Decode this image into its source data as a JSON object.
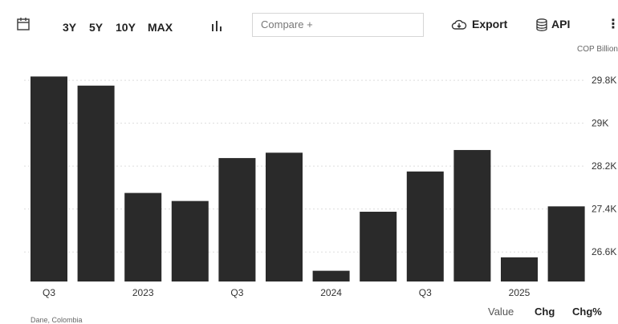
{
  "toolbar": {
    "ranges": [
      "3Y",
      "5Y",
      "10Y",
      "MAX"
    ],
    "compare_placeholder": "Compare +",
    "export_label": "Export",
    "api_label": "API",
    "more_label": "⋮"
  },
  "unit_label": "COP Billion",
  "footer": {
    "source": "Dane, Colombia",
    "tabs": [
      "Value",
      "Chg",
      "Chg%"
    ]
  },
  "colors": {
    "bar": "#2a2a2a",
    "grid": "#dddddd"
  },
  "chart_data": {
    "type": "bar",
    "values": [
      29870,
      29700,
      27700,
      27550,
      28350,
      28450,
      26250,
      27350,
      28100,
      28500,
      26500,
      27450
    ],
    "x_tick_labels": [
      "Q3",
      "2023",
      "Q3",
      "2024",
      "Q3",
      "2025"
    ],
    "x_tick_bar_index": [
      0,
      2,
      4,
      6,
      8,
      10
    ],
    "y_ticks": [
      26600,
      27400,
      28200,
      29000,
      29800
    ],
    "y_tick_labels": [
      "26.6K",
      "27.4K",
      "28.2K",
      "29K",
      "29.8K"
    ],
    "ylim": [
      26050,
      30100
    ],
    "grid": true,
    "y_axis_side": "right"
  }
}
